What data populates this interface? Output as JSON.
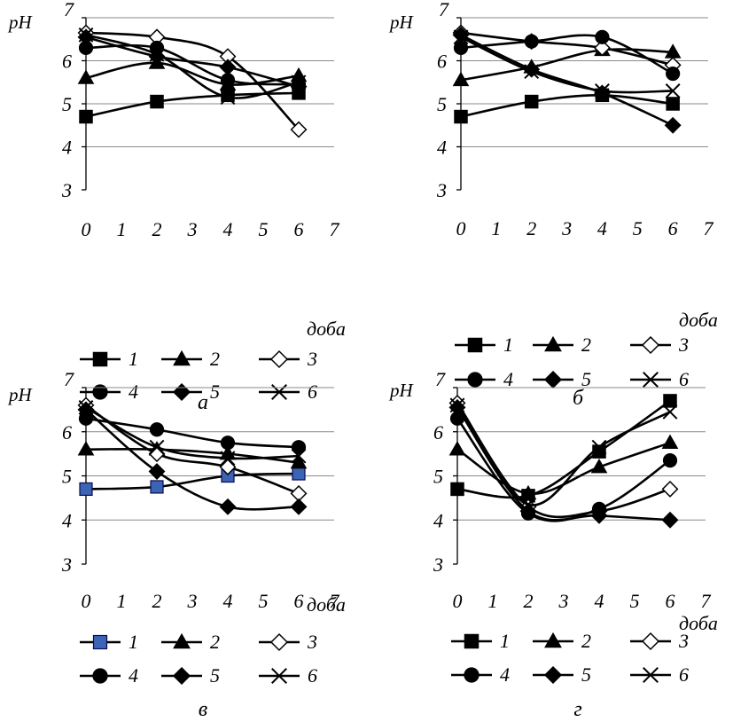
{
  "chart_data": [
    {
      "type": "line",
      "panel_label": "а",
      "ylabel": "pH",
      "xlabel": "доба",
      "ylim": [
        3,
        7
      ],
      "xlim": [
        0,
        7
      ],
      "x_ticks": [
        "0",
        "1",
        "2",
        "3",
        "4",
        "5",
        "6",
        "7"
      ],
      "y_ticks": [
        "3",
        "4",
        "5",
        "6",
        "7"
      ],
      "grid": "horizontal",
      "x": [
        0,
        2,
        4,
        6
      ],
      "series": [
        {
          "name": "1",
          "marker": "square",
          "values": [
            4.7,
            5.05,
            5.2,
            5.25
          ]
        },
        {
          "name": "2",
          "marker": "triangle",
          "values": [
            5.6,
            5.95,
            5.45,
            5.65
          ]
        },
        {
          "name": "3",
          "marker": "diamond-open",
          "values": [
            6.65,
            6.55,
            6.1,
            4.4
          ]
        },
        {
          "name": "4",
          "marker": "circle",
          "values": [
            6.3,
            6.3,
            5.55,
            5.45
          ]
        },
        {
          "name": "5",
          "marker": "diamond",
          "values": [
            6.55,
            6.1,
            5.85,
            5.4
          ]
        },
        {
          "name": "6",
          "marker": "x",
          "values": [
            6.6,
            6.15,
            5.15,
            5.5
          ]
        }
      ]
    },
    {
      "type": "line",
      "panel_label": "б",
      "ylabel": "pH",
      "xlabel": "доба",
      "ylim": [
        3,
        7
      ],
      "xlim": [
        0,
        7
      ],
      "x_ticks": [
        "0",
        "1",
        "2",
        "3",
        "4",
        "5",
        "6",
        "7"
      ],
      "y_ticks": [
        "3",
        "4",
        "5",
        "6",
        "7"
      ],
      "grid": "horizontal",
      "x": [
        0,
        2,
        4,
        6
      ],
      "series": [
        {
          "name": "1",
          "marker": "square",
          "values": [
            4.7,
            5.05,
            5.2,
            5.0
          ]
        },
        {
          "name": "2",
          "marker": "triangle",
          "values": [
            5.55,
            5.85,
            6.25,
            6.2
          ]
        },
        {
          "name": "3",
          "marker": "diamond-open",
          "values": [
            6.65,
            6.45,
            6.3,
            5.9
          ]
        },
        {
          "name": "4",
          "marker": "circle",
          "values": [
            6.3,
            6.45,
            6.55,
            5.7
          ]
        },
        {
          "name": "5",
          "marker": "diamond",
          "values": [
            6.6,
            5.8,
            5.25,
            4.5
          ]
        },
        {
          "name": "6",
          "marker": "x",
          "values": [
            6.55,
            5.75,
            5.3,
            5.3
          ]
        }
      ]
    },
    {
      "type": "line",
      "panel_label": "в",
      "ylabel": "pH",
      "xlabel": "доба",
      "ylim": [
        3,
        7
      ],
      "xlim": [
        0,
        7
      ],
      "x_ticks": [
        "0",
        "1",
        "2",
        "3",
        "4",
        "5",
        "6",
        "7"
      ],
      "y_ticks": [
        "3",
        "4",
        "5",
        "6",
        "7"
      ],
      "grid": "horizontal",
      "x": [
        0,
        2,
        4,
        6
      ],
      "series": [
        {
          "name": "1",
          "marker": "square-blue",
          "values": [
            4.7,
            4.75,
            5.0,
            5.05
          ]
        },
        {
          "name": "2",
          "marker": "triangle",
          "values": [
            5.6,
            5.6,
            5.5,
            5.3
          ]
        },
        {
          "name": "3",
          "marker": "diamond-open",
          "values": [
            6.6,
            5.5,
            5.2,
            4.6
          ]
        },
        {
          "name": "4",
          "marker": "circle",
          "values": [
            6.3,
            6.05,
            5.75,
            5.65
          ]
        },
        {
          "name": "5",
          "marker": "diamond",
          "values": [
            6.5,
            5.1,
            4.3,
            4.3
          ]
        },
        {
          "name": "6",
          "marker": "x",
          "values": [
            6.55,
            5.65,
            5.4,
            5.45
          ]
        }
      ]
    },
    {
      "type": "line",
      "panel_label": "г",
      "ylabel": "pH",
      "xlabel": "доба",
      "ylim": [
        3,
        7
      ],
      "xlim": [
        0,
        7
      ],
      "x_ticks": [
        "0",
        "1",
        "2",
        "3",
        "4",
        "5",
        "6",
        "7"
      ],
      "y_ticks": [
        "3",
        "4",
        "5",
        "6",
        "7"
      ],
      "grid": "horizontal",
      "x": [
        0,
        2,
        4,
        6
      ],
      "series": [
        {
          "name": "1",
          "marker": "square",
          "values": [
            4.7,
            4.55,
            5.55,
            6.7
          ]
        },
        {
          "name": "2",
          "marker": "triangle",
          "values": [
            5.6,
            4.6,
            5.2,
            5.75
          ]
        },
        {
          "name": "3",
          "marker": "diamond-open",
          "values": [
            6.65,
            4.3,
            4.2,
            4.7
          ]
        },
        {
          "name": "4",
          "marker": "circle",
          "values": [
            6.3,
            4.15,
            4.25,
            5.35
          ]
        },
        {
          "name": "5",
          "marker": "diamond",
          "values": [
            6.55,
            4.2,
            4.1,
            4.0
          ]
        },
        {
          "name": "6",
          "marker": "x",
          "values": [
            6.6,
            4.35,
            5.65,
            6.45
          ]
        }
      ]
    }
  ]
}
